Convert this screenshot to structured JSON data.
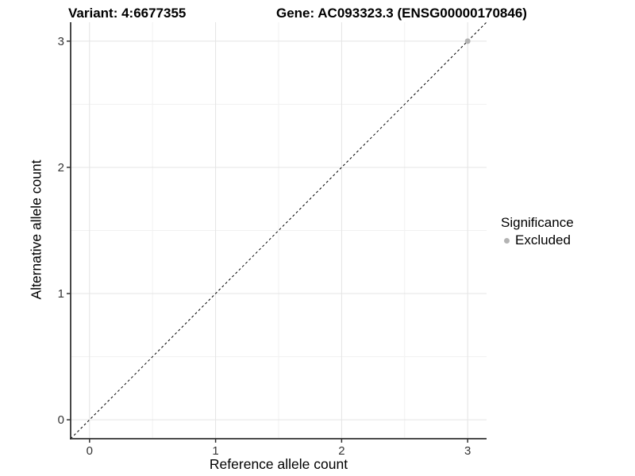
{
  "header": {
    "variant_title": "Variant: 4:6677355",
    "gene_title": "Gene: AC093323.3 (ENSG00000170846)"
  },
  "chart_data": {
    "type": "scatter",
    "xlabel": "Reference allele count",
    "ylabel": "Alternative allele count",
    "xlim": [
      -0.15,
      3.15
    ],
    "ylim": [
      -0.15,
      3.15
    ],
    "xticks": [
      0,
      1,
      2,
      3
    ],
    "yticks": [
      0,
      1,
      2,
      3
    ],
    "minor_xticks": [
      0.5,
      1.5,
      2.5
    ],
    "minor_yticks": [
      0.5,
      1.5,
      2.5
    ],
    "grid": "on",
    "points": [
      {
        "x": 3,
        "y": 3,
        "series": "Excluded"
      }
    ],
    "identity_line": {
      "style": "dashed",
      "x1": -0.15,
      "y1": -0.15,
      "x2": 3.15,
      "y2": 3.15
    },
    "legend": {
      "title": "Significance",
      "position": "right",
      "entries": [
        {
          "label": "Excluded",
          "color": "#b3b3b3"
        }
      ]
    }
  },
  "colors": {
    "background": "#ffffff",
    "grid_major": "#e4e4e4",
    "grid_minor": "#f1f1f1",
    "axis_line": "#333333",
    "tick_mark": "#333333",
    "tick_label": "#333333",
    "identity_line": "#000000",
    "point": "#b3b3b3"
  }
}
